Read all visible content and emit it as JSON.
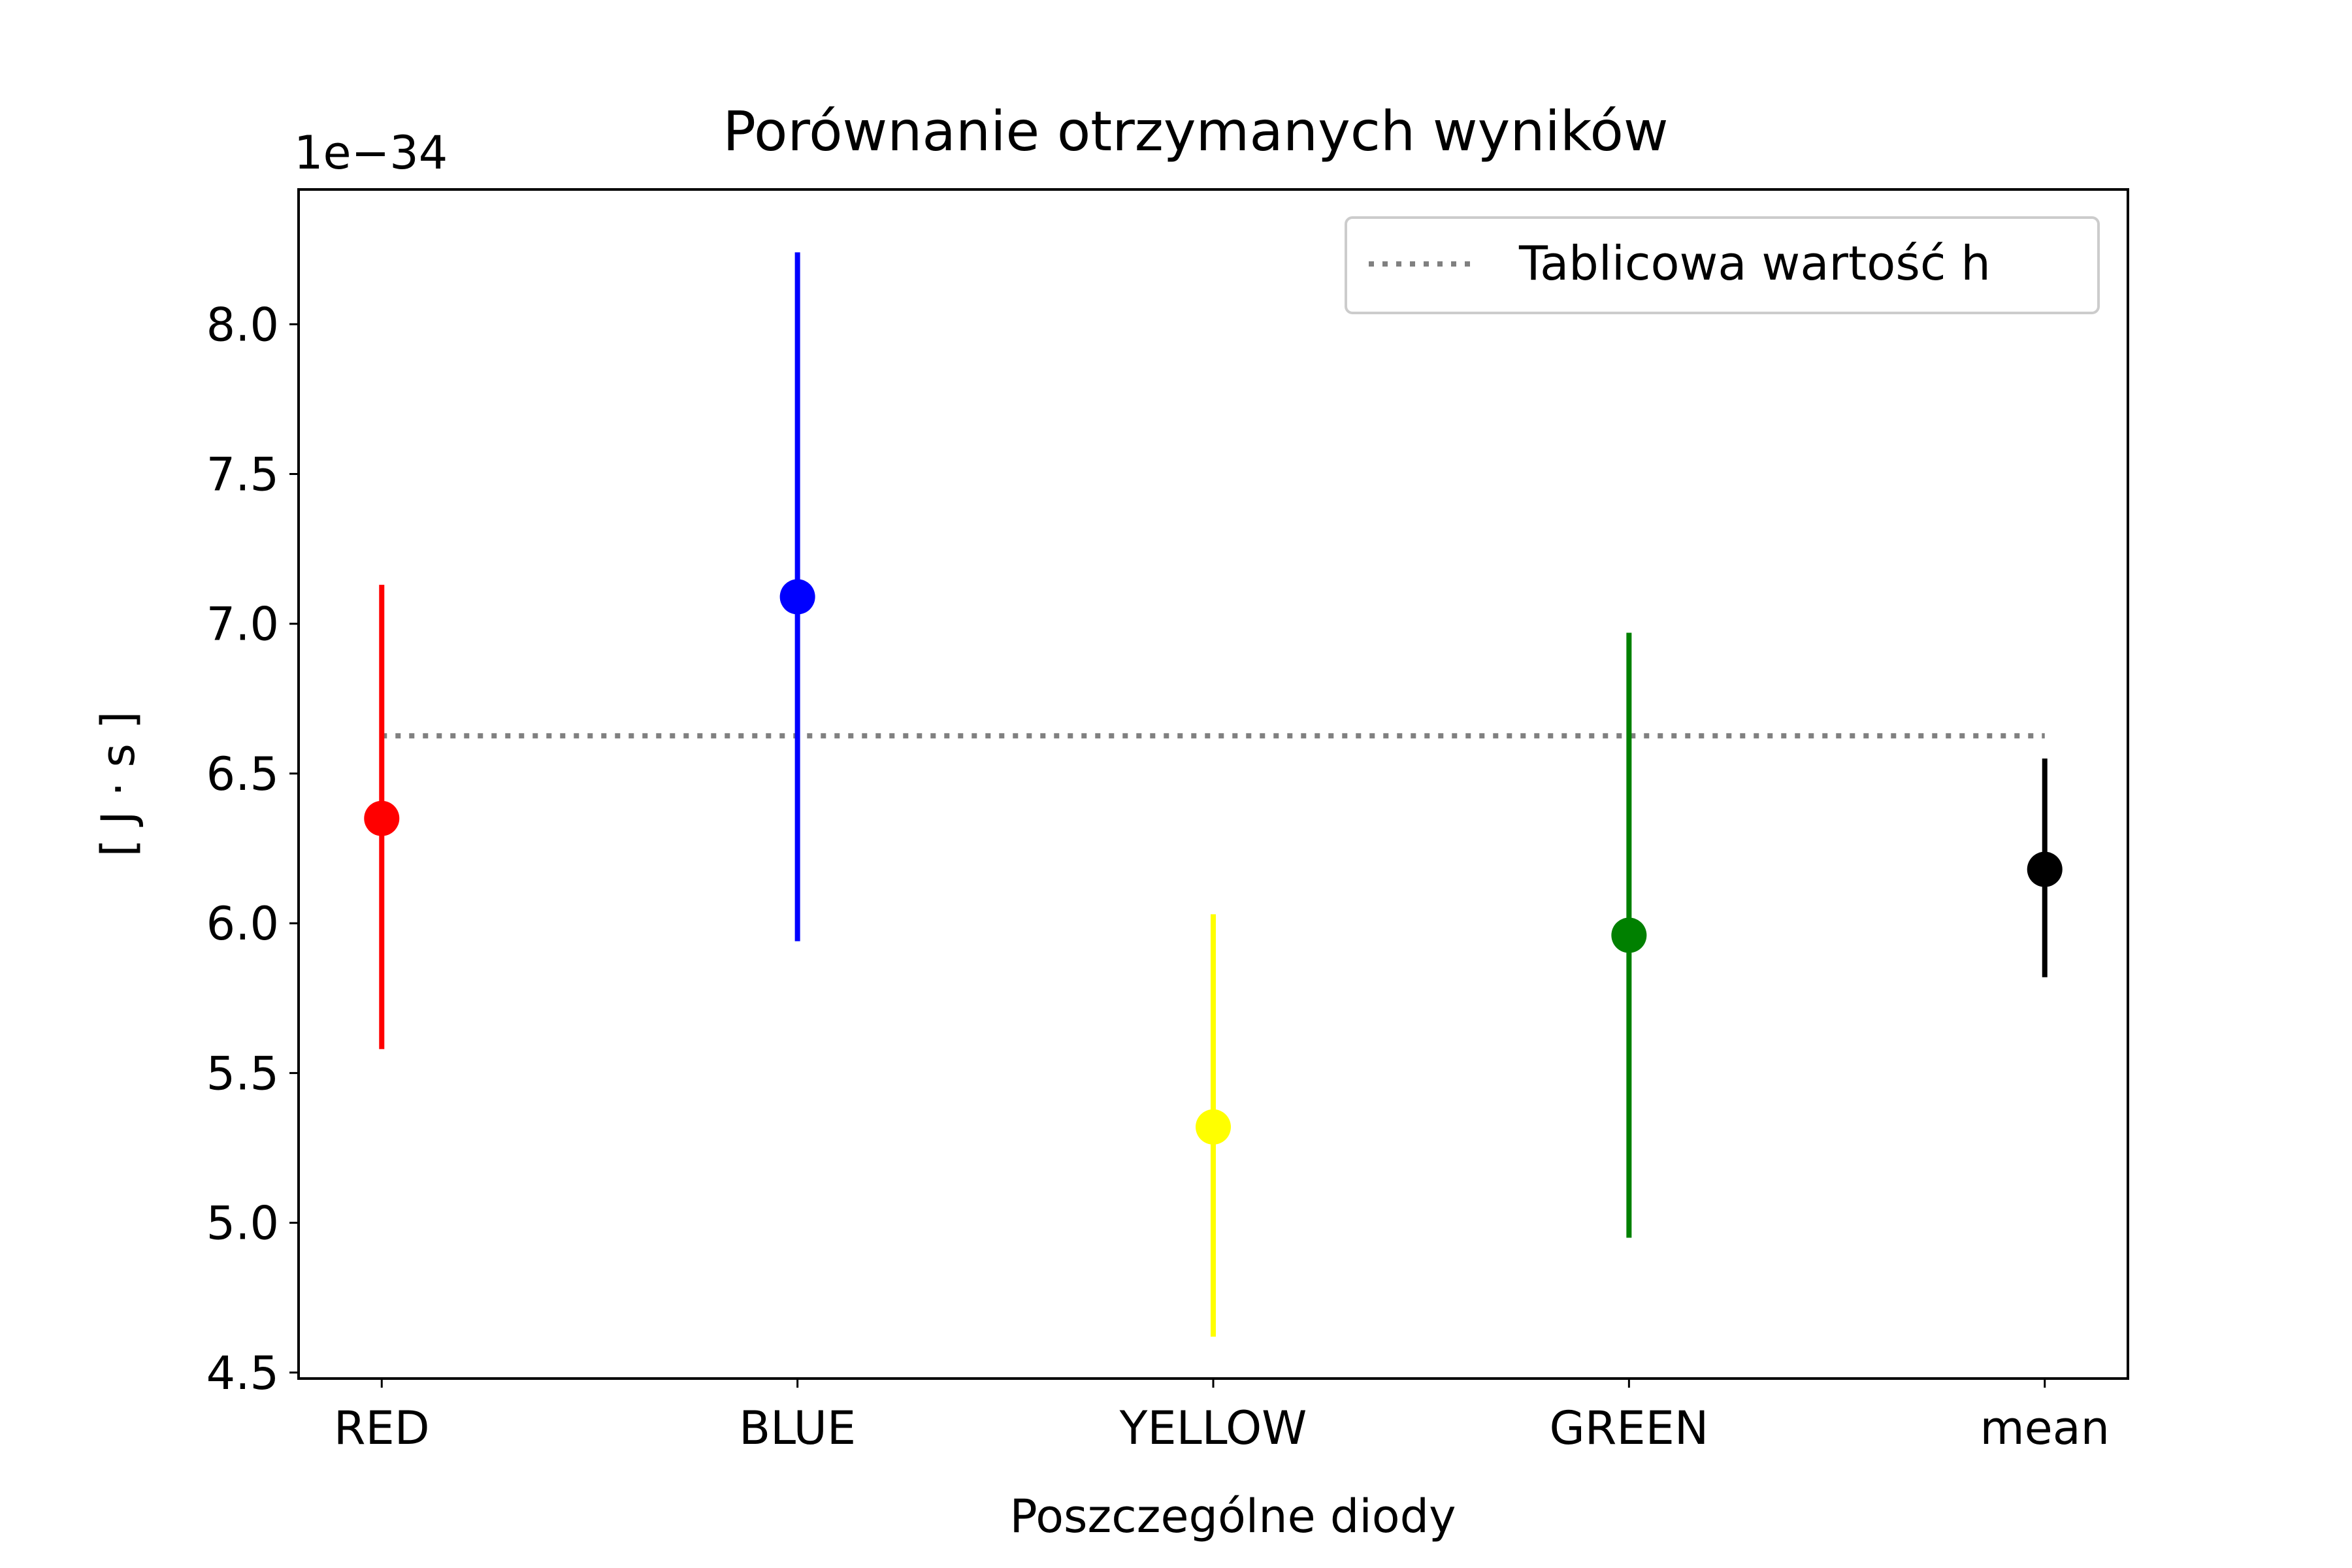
{
  "chart_data": {
    "type": "errorbar",
    "title": "Porównanie otrzymanych wyników",
    "xlabel": "Poszczególne diody",
    "ylabel": "[ J · s ]",
    "y_offset_label": "1e−34",
    "y_multiplier": 1e-34,
    "ylim": [
      4.48,
      8.45
    ],
    "yticks": [
      4.5,
      5.0,
      5.5,
      6.0,
      6.5,
      7.0,
      7.5,
      8.0
    ],
    "ytick_labels": [
      "4.5",
      "5.0",
      "5.5",
      "6.0",
      "6.5",
      "7.0",
      "7.5",
      "8.0"
    ],
    "categories": [
      "RED",
      "BLUE",
      "YELLOW",
      "GREEN",
      "mean"
    ],
    "points": [
      {
        "category": "RED",
        "value": 6.35,
        "low": 5.58,
        "high": 7.13,
        "color": "#ff0000"
      },
      {
        "category": "BLUE",
        "value": 7.09,
        "low": 5.94,
        "high": 8.24,
        "color": "#0000ff"
      },
      {
        "category": "YELLOW",
        "value": 5.32,
        "low": 4.62,
        "high": 6.03,
        "color": "#ffff00"
      },
      {
        "category": "GREEN",
        "value": 5.96,
        "low": 4.95,
        "high": 6.97,
        "color": "#008000"
      },
      {
        "category": "mean",
        "value": 6.18,
        "low": 5.82,
        "high": 6.55,
        "color": "#000000"
      }
    ],
    "reference_line": {
      "label": "Tablicowa wartość h",
      "value": 6.626,
      "style": "dotted",
      "color": "#808080"
    },
    "legend": {
      "position": "upper right",
      "entries": [
        "Tablicowa wartość h"
      ]
    },
    "grid": false
  }
}
